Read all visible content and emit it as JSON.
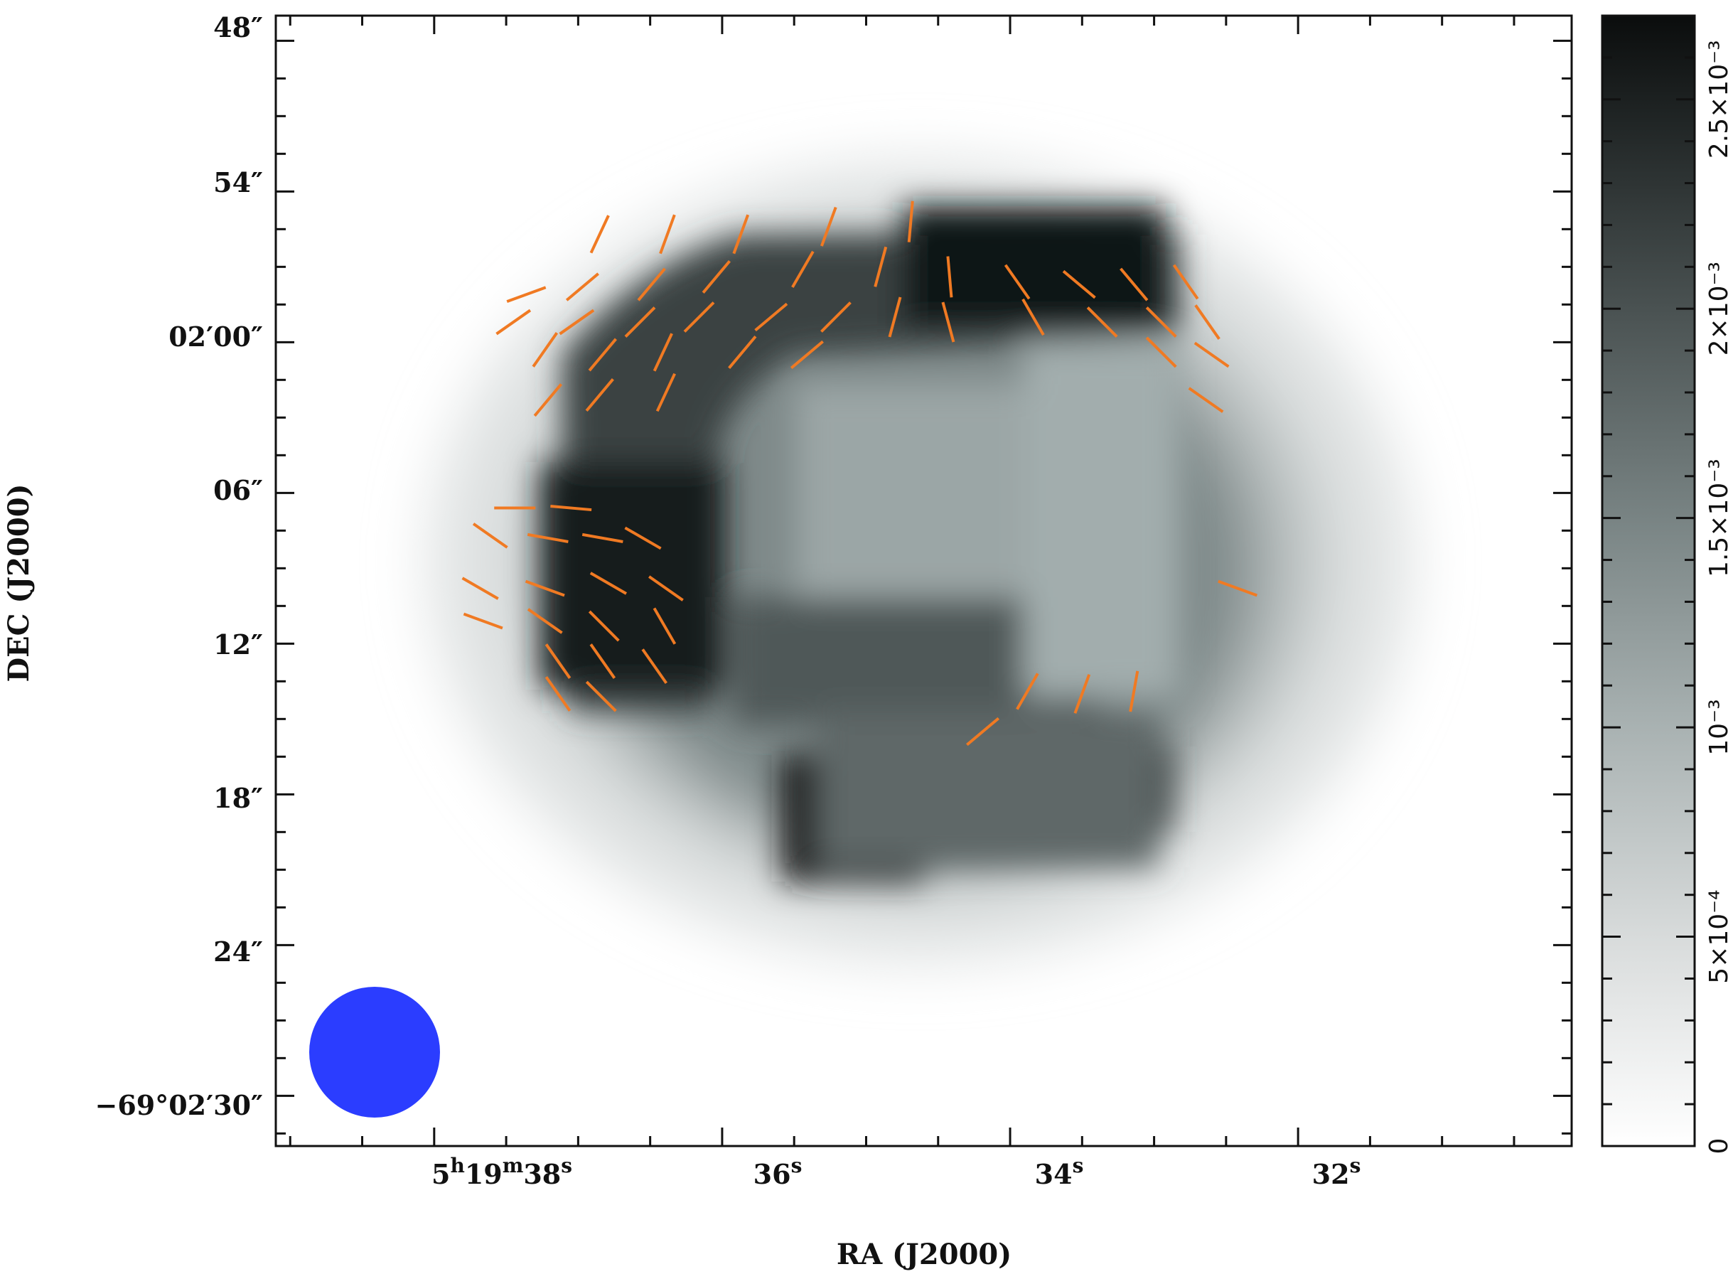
{
  "chart_data": {
    "type": "heatmap",
    "title": "",
    "xlabel": "RA (J2000)",
    "ylabel": "DEC (J2000)",
    "x_ticks": [
      {
        "h": "5",
        "m": "19",
        "s": "38",
        "value_s": 38
      },
      {
        "s": "36",
        "value_s": 36
      },
      {
        "s": "34",
        "value_s": 34
      },
      {
        "s": "32",
        "value_s": 32
      }
    ],
    "y_ticks": [
      {
        "text": "48″",
        "value_arcsec": -72
      },
      {
        "text": "54″",
        "value_arcsec": -66
      },
      {
        "text": "02′00″",
        "value_arcsec": -120
      },
      {
        "text": "06″",
        "value_arcsec": -126
      },
      {
        "text": "12″",
        "value_arcsec": -132
      },
      {
        "text": "18″",
        "value_arcsec": -138
      },
      {
        "text": "24″",
        "value_arcsec": -144
      },
      {
        "text": "−69°02′30″",
        "value_arcsec": -150
      }
    ],
    "ra_range_s": [
      39.1,
      30.1
    ],
    "dec_range": [
      "-69:01:47",
      "-69:02:32"
    ],
    "colormap": "gray_reversed",
    "colorbar": {
      "range": [
        0,
        0.0027
      ],
      "ticks": [
        {
          "text": "0",
          "value": 0
        },
        {
          "text": "5×10⁻⁴",
          "value": 0.0005
        },
        {
          "text": "10⁻³",
          "value": 0.001
        },
        {
          "text": "1.5×10⁻³",
          "value": 0.0015
        },
        {
          "text": "2×10⁻³",
          "value": 0.002
        },
        {
          "text": "2.5×10⁻³",
          "value": 0.0025
        }
      ]
    },
    "beam": {
      "color": "#2b3dff",
      "shape": "circle"
    },
    "vector_color": "#f07a23",
    "polarization_vectors": [
      {
        "ra_s": 36.85,
        "dec_off": 55.7,
        "pa": 25
      },
      {
        "ra_s": 36.38,
        "dec_off": 55.7,
        "pa": 20
      },
      {
        "ra_s": 35.87,
        "dec_off": 55.7,
        "pa": 20
      },
      {
        "ra_s": 35.26,
        "dec_off": 55.4,
        "pa": 20
      },
      {
        "ra_s": 34.69,
        "dec_off": 55.2,
        "pa": 5
      },
      {
        "ra_s": 37.36,
        "dec_off": 58.1,
        "pa": 70
      },
      {
        "ra_s": 36.97,
        "dec_off": 57.8,
        "pa": 50
      },
      {
        "ra_s": 36.49,
        "dec_off": 57.7,
        "pa": 40
      },
      {
        "ra_s": 36.04,
        "dec_off": 57.4,
        "pa": 40
      },
      {
        "ra_s": 35.44,
        "dec_off": 57.1,
        "pa": 30
      },
      {
        "ra_s": 34.9,
        "dec_off": 57.0,
        "pa": 15
      },
      {
        "ra_s": 34.42,
        "dec_off": 57.4,
        "pa": -5
      },
      {
        "ra_s": 33.95,
        "dec_off": 57.6,
        "pa": -35
      },
      {
        "ra_s": 33.52,
        "dec_off": 57.7,
        "pa": -50
      },
      {
        "ra_s": 33.14,
        "dec_off": 57.7,
        "pa": -40
      },
      {
        "ra_s": 32.78,
        "dec_off": 57.6,
        "pa": -35
      },
      {
        "ra_s": 37.45,
        "dec_off": 59.2,
        "pa": 55
      },
      {
        "ra_s": 37.01,
        "dec_off": 59.2,
        "pa": 55
      },
      {
        "ra_s": 36.57,
        "dec_off": 59.2,
        "pa": 45
      },
      {
        "ra_s": 36.16,
        "dec_off": 59.0,
        "pa": 45
      },
      {
        "ra_s": 35.66,
        "dec_off": 59.0,
        "pa": 50
      },
      {
        "ra_s": 35.21,
        "dec_off": 59.0,
        "pa": 45
      },
      {
        "ra_s": 34.8,
        "dec_off": 59.0,
        "pa": 15
      },
      {
        "ra_s": 34.43,
        "dec_off": 59.2,
        "pa": -15
      },
      {
        "ra_s": 33.84,
        "dec_off": 59.0,
        "pa": -30
      },
      {
        "ra_s": 33.36,
        "dec_off": 59.2,
        "pa": -45
      },
      {
        "ra_s": 32.95,
        "dec_off": 59.2,
        "pa": -45
      },
      {
        "ra_s": 32.63,
        "dec_off": 59.2,
        "pa": -35
      },
      {
        "ra_s": 37.23,
        "dec_off": 60.3,
        "pa": 35
      },
      {
        "ra_s": 36.83,
        "dec_off": 60.5,
        "pa": 40
      },
      {
        "ra_s": 36.41,
        "dec_off": 60.4,
        "pa": 25
      },
      {
        "ra_s": 35.86,
        "dec_off": 60.4,
        "pa": 40
      },
      {
        "ra_s": 35.41,
        "dec_off": 60.5,
        "pa": 50
      },
      {
        "ra_s": 32.95,
        "dec_off": 60.4,
        "pa": -45
      },
      {
        "ra_s": 32.6,
        "dec_off": 60.5,
        "pa": -55
      },
      {
        "ra_s": 37.21,
        "dec_off": 62.3,
        "pa": 40
      },
      {
        "ra_s": 36.85,
        "dec_off": 62.1,
        "pa": 40
      },
      {
        "ra_s": 36.39,
        "dec_off": 62.0,
        "pa": 25
      },
      {
        "ra_s": 32.64,
        "dec_off": 62.3,
        "pa": -55
      },
      {
        "ra_s": 37.44,
        "dec_off": 66.6,
        "pa": 90
      },
      {
        "ra_s": 37.05,
        "dec_off": 66.6,
        "pa": 95
      },
      {
        "ra_s": 37.61,
        "dec_off": 67.7,
        "pa": -55
      },
      {
        "ra_s": 37.21,
        "dec_off": 67.8,
        "pa": -80
      },
      {
        "ra_s": 36.83,
        "dec_off": 67.8,
        "pa": -80
      },
      {
        "ra_s": 36.55,
        "dec_off": 67.8,
        "pa": -60
      },
      {
        "ra_s": 37.68,
        "dec_off": 69.8,
        "pa": -60
      },
      {
        "ra_s": 37.23,
        "dec_off": 69.8,
        "pa": -70
      },
      {
        "ra_s": 36.79,
        "dec_off": 69.6,
        "pa": -60
      },
      {
        "ra_s": 36.39,
        "dec_off": 69.8,
        "pa": -55
      },
      {
        "ra_s": 32.42,
        "dec_off": 69.8,
        "pa": -70
      },
      {
        "ra_s": 37.66,
        "dec_off": 71.1,
        "pa": -70
      },
      {
        "ra_s": 37.23,
        "dec_off": 71.1,
        "pa": -55
      },
      {
        "ra_s": 36.82,
        "dec_off": 71.3,
        "pa": -45
      },
      {
        "ra_s": 36.4,
        "dec_off": 71.3,
        "pa": -30
      },
      {
        "ra_s": 37.14,
        "dec_off": 72.7,
        "pa": -35
      },
      {
        "ra_s": 36.83,
        "dec_off": 72.7,
        "pa": -35
      },
      {
        "ra_s": 36.47,
        "dec_off": 72.9,
        "pa": -35
      },
      {
        "ra_s": 37.14,
        "dec_off": 74.0,
        "pa": -35
      },
      {
        "ra_s": 36.84,
        "dec_off": 74.1,
        "pa": -45
      },
      {
        "ra_s": 33.88,
        "dec_off": 73.9,
        "pa": 30
      },
      {
        "ra_s": 33.5,
        "dec_off": 74.0,
        "pa": 20
      },
      {
        "ra_s": 33.14,
        "dec_off": 73.9,
        "pa": 10
      },
      {
        "ra_s": 34.19,
        "dec_off": 75.5,
        "pa": 50
      }
    ]
  }
}
